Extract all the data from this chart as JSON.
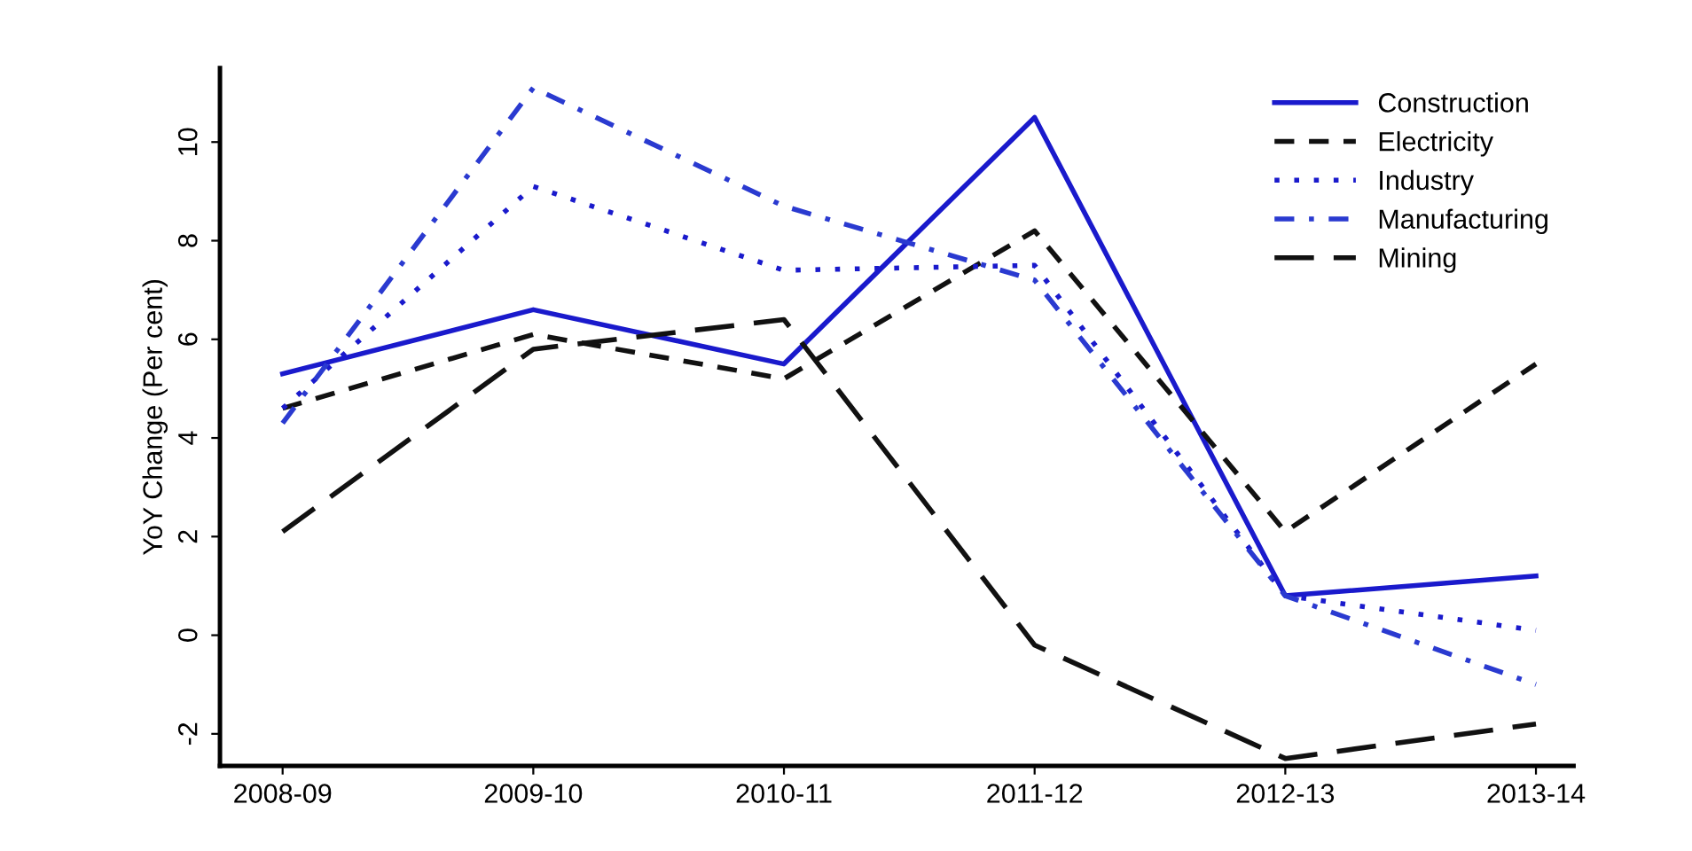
{
  "chart_data": {
    "type": "line",
    "ylabel": "YoY Change (Per cent)",
    "categories": [
      "2008-09",
      "2009-10",
      "2010-11",
      "2011-12",
      "2012-13",
      "2013-14"
    ],
    "ylim": [
      -2.65,
      11.5
    ],
    "yticks": [
      -2,
      0,
      2,
      4,
      6,
      8,
      10
    ],
    "grid": false,
    "legend": "top right",
    "marker": "none",
    "series": [
      {
        "name": "Construction",
        "color": "#1a1acc",
        "line_style": "solid",
        "values": [
          5.3,
          6.6,
          5.5,
          10.5,
          0.8,
          1.2
        ]
      },
      {
        "name": "Electricity",
        "color": "#111111",
        "line_style": "dashed",
        "values": [
          4.6,
          6.1,
          5.2,
          8.2,
          2.1,
          5.5
        ]
      },
      {
        "name": "Industry",
        "color": "#1a1acc",
        "line_style": "dotted",
        "values": [
          4.6,
          9.1,
          7.4,
          7.5,
          0.8,
          0.1
        ]
      },
      {
        "name": "Manufacturing",
        "color": "#2a3ad0",
        "line_style": "dashdot",
        "values": [
          4.3,
          11.1,
          8.7,
          7.2,
          0.8,
          -1.0
        ]
      },
      {
        "name": "Mining",
        "color": "#111111",
        "line_style": "longdash",
        "values": [
          2.1,
          5.8,
          6.4,
          -0.2,
          -2.5,
          -1.8
        ]
      }
    ]
  }
}
